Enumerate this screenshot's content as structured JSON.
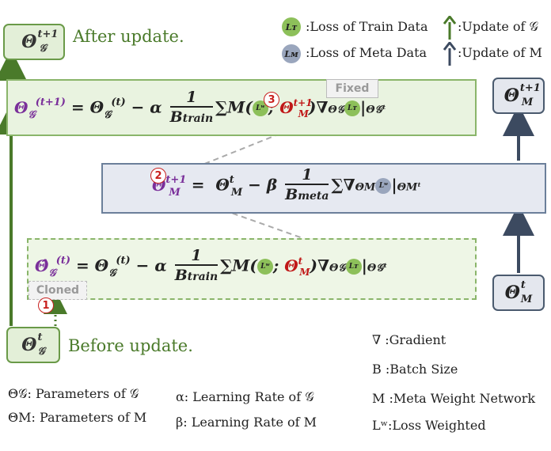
{
  "labels": {
    "after_update": "After update.",
    "before_update": "Before update.",
    "fixed": "Fixed",
    "cloned": "Cloned"
  },
  "markers": [
    "1",
    "2",
    "3"
  ],
  "legend_top": [
    {
      "icon": "L_T",
      "text": ":Loss of Train Data",
      "color": "#8dc05a"
    },
    {
      "icon": "L_M",
      "text": ":Loss of Meta Data",
      "color": "#9aa6bd"
    },
    {
      "icon": "green-arrow",
      "text": ":Update of 𝒢",
      "color": "#4a7a2a"
    },
    {
      "icon": "navy-arrow",
      "text": ":Update of M",
      "color": "#3c4a60"
    }
  ],
  "legend_bottom": {
    "theta_g": "Θ𝒢: Parameters of 𝒢",
    "theta_m": "ΘM: Parameters of M",
    "alpha": "α:   Learning Rate of  𝒢",
    "beta": "β:   Learning Rate of M",
    "grad": "∇ :Gradient",
    "batch": "B :Batch Size",
    "meta": "M  :Meta Weight Network",
    "lw": "Lʷ:Loss Weighted"
  },
  "colors": {
    "green_border": "#6a9a48",
    "green_fill": "#e3efd8",
    "navy_border": "#4a5a6e",
    "navy_fill": "#e4e7ee",
    "purple": "#7a2f9a",
    "red": "#c01818"
  }
}
